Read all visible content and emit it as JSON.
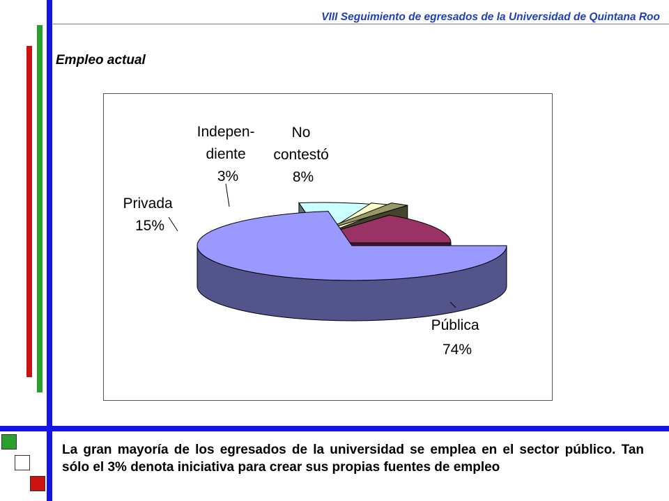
{
  "header": {
    "title": "VIII Seguimiento de egresados de la Universidad de Quintana Roo"
  },
  "slide": {
    "title": "Empleo actual"
  },
  "caption": {
    "text": "La gran mayoría de los egresados  de la universidad se emplea en el sector público. Tan sólo el 3% denota iniciativa para crear sus propias fuentes de empleo"
  },
  "colors": {
    "blue_bar": "#1414e6",
    "green_bar": "#2ca02c",
    "red_bar": "#cc1111",
    "publica": "#9999ff",
    "privada": "#993366",
    "independiente": "#ffffcc",
    "no_contesto": "#ccffff",
    "otro": "#999966"
  },
  "chart_data": {
    "type": "pie",
    "style": "3d-exploded",
    "slices": [
      {
        "label_lines": [
          "Pública",
          "74%"
        ],
        "value": 74,
        "color": "#9999ff"
      },
      {
        "label_lines": [
          "No",
          "contestó",
          "8%"
        ],
        "value": 8,
        "color": "#ccffff"
      },
      {
        "label_lines": [
          "Indepen-",
          "diente",
          "3%"
        ],
        "value": 3,
        "color": "#ffffcc"
      },
      {
        "label_lines": [],
        "value": 2,
        "color": "#999966"
      },
      {
        "label_lines": [
          "Privada",
          "15%"
        ],
        "value": 15,
        "color": "#993366"
      }
    ]
  }
}
